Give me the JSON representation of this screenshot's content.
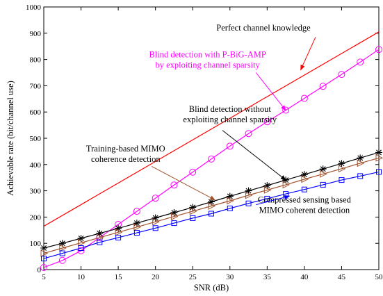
{
  "chart_data": {
    "type": "line",
    "xlabel": "SNR (dB)",
    "ylabel": "Achievable rate (bit/channel use)",
    "xlim": [
      5,
      50
    ],
    "ylim": [
      0,
      1000
    ],
    "xticks": [
      5,
      10,
      15,
      20,
      25,
      30,
      35,
      40,
      45,
      50
    ],
    "yticks": [
      0,
      100,
      200,
      300,
      400,
      500,
      600,
      700,
      800,
      900,
      1000
    ],
    "grid": false,
    "series": [
      {
        "id": "perfect",
        "color": "#ff0000",
        "marker": "none",
        "x": [
          5,
          50
        ],
        "values": [
          165,
          905
        ]
      },
      {
        "id": "pbigamp",
        "color": "#ff00ff",
        "marker": "circle",
        "x": [
          5,
          7.5,
          10,
          12.5,
          15,
          17.5,
          20,
          22.5,
          25,
          27.5,
          30,
          32.5,
          35,
          37.5,
          40,
          42.5,
          45,
          47.5,
          50
        ],
        "values": [
          8,
          35,
          72,
          122,
          172,
          222,
          272,
          322,
          371,
          421,
          470,
          518,
          563,
          607,
          652,
          698,
          743,
          790,
          838
        ]
      },
      {
        "id": "nosparsity",
        "color": "#000000",
        "marker": "star",
        "x": [
          5,
          7.5,
          10,
          12.5,
          15,
          17.5,
          20,
          22.5,
          25,
          27.5,
          30,
          32.5,
          35,
          37.5,
          40,
          42.5,
          45,
          47.5,
          50
        ],
        "values": [
          82,
          100,
          119,
          138,
          157,
          177,
          197,
          217,
          237,
          258,
          279,
          300,
          320,
          341,
          362,
          383,
          404,
          425,
          446
        ]
      },
      {
        "id": "training",
        "color": "#a0522d",
        "marker": "triangle-right",
        "x": [
          5,
          7.5,
          10,
          12.5,
          15,
          17.5,
          20,
          22.5,
          25,
          27.5,
          30,
          32.5,
          35,
          37.5,
          40,
          42.5,
          45,
          47.5,
          50
        ],
        "values": [
          62,
          82,
          102,
          122,
          142,
          162,
          182,
          202,
          222,
          242,
          262,
          283,
          303,
          323,
          344,
          364,
          384,
          405,
          425
        ]
      },
      {
        "id": "compressed",
        "color": "#0000ff",
        "marker": "square",
        "x": [
          5,
          7.5,
          10,
          12.5,
          15,
          17.5,
          20,
          22.5,
          25,
          27.5,
          30,
          32.5,
          35,
          37.5,
          40,
          42.5,
          45,
          47.5,
          50
        ],
        "values": [
          42,
          62,
          82,
          104,
          122,
          140,
          158,
          177,
          196,
          213,
          233,
          252,
          270,
          288,
          305,
          323,
          341,
          356,
          372
        ]
      }
    ],
    "annotations": [
      {
        "lines": [
          "Perfect channel knowledge"
        ],
        "color": "#000000",
        "text_at": [
          34.5,
          910
        ],
        "arrow_from": [
          41.5,
          885
        ],
        "arrow_to": [
          39.5,
          760
        ]
      },
      {
        "lines": [
          "Blind detection with P-BiG-AMP",
          "by exploiting channel sparsity"
        ],
        "color": "#ff00ff",
        "text_at": [
          27,
          808
        ],
        "arrow_from": [
          33.5,
          750
        ],
        "arrow_to": [
          37.5,
          606
        ]
      },
      {
        "lines": [
          "Blind detection without",
          "exploiting channel sparsity"
        ],
        "color": "#000000",
        "text_at": [
          30,
          600
        ],
        "arrow_from": [
          29,
          530
        ],
        "arrow_to": [
          37.5,
          341
        ]
      },
      {
        "lines": [
          "Training-based MIMO",
          "coherence detection"
        ],
        "color": "#000000",
        "text_at": [
          16,
          450
        ],
        "arrow_from": [
          19.5,
          393
        ],
        "arrow_to": [
          28,
          265
        ]
      },
      {
        "lines": [
          "Compressed sensing based",
          "MIMO coherent detection"
        ],
        "color": "#000000",
        "text_at": [
          40,
          255
        ],
        "arrow_from": [
          33.5,
          247
        ],
        "arrow_to": [
          38,
          280
        ]
      }
    ]
  }
}
